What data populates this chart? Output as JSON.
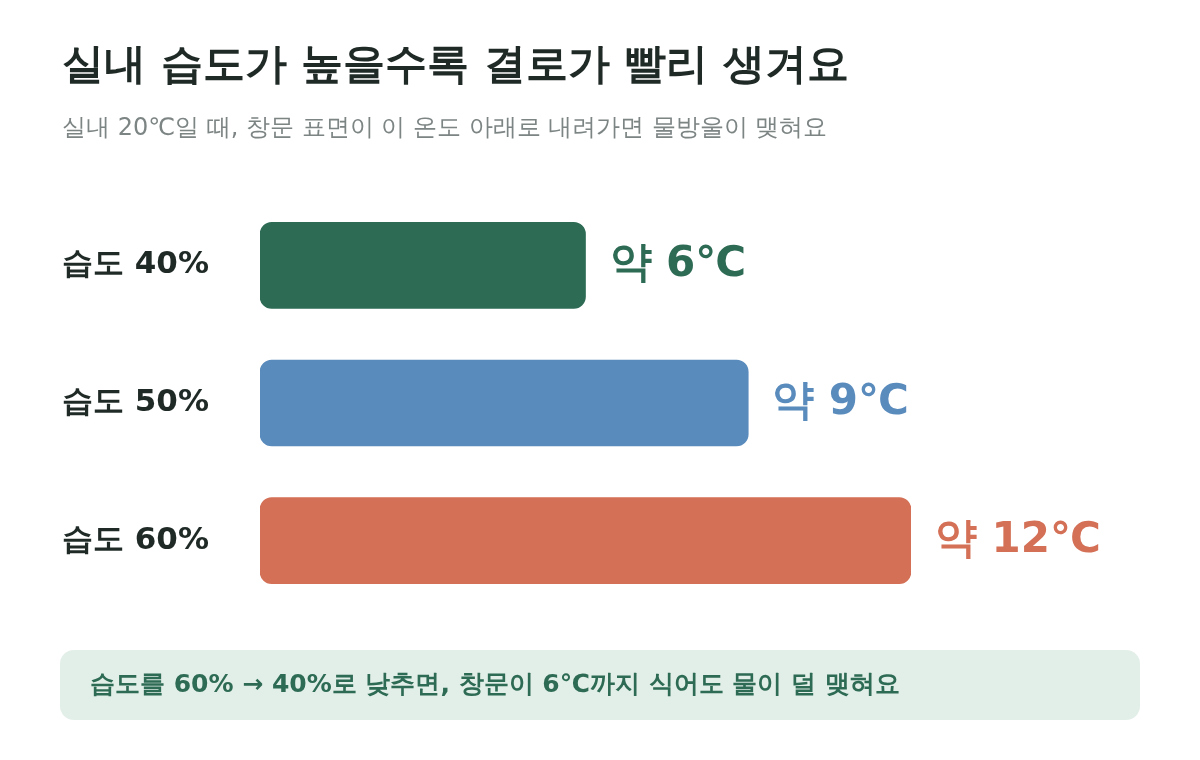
{
  "chart_data": {
    "type": "bar",
    "orientation": "horizontal",
    "title": "실내 습도가 높을수록 결로가 빨리 생겨요",
    "subtitle": "실내 20℃일 때, 창문 표면이 이 온도 아래로 내려가면 물방울이 맺혀요",
    "categories": [
      "습도 40%",
      "습도 50%",
      "습도 60%"
    ],
    "values": [
      6,
      9,
      12
    ],
    "colors": [
      "#2e6b55",
      "#5a8bbd",
      "#d47056"
    ],
    "value_labels": [
      "약 6℃",
      "약 9℃",
      "약 12℃"
    ],
    "annotations": [
      "습도를 60% → 40%로 낮추면, 창문이 6℃까지 식어도 물이 덜 맺혀요"
    ],
    "tick_labels": "y",
    "grid": false,
    "legend": false
  }
}
